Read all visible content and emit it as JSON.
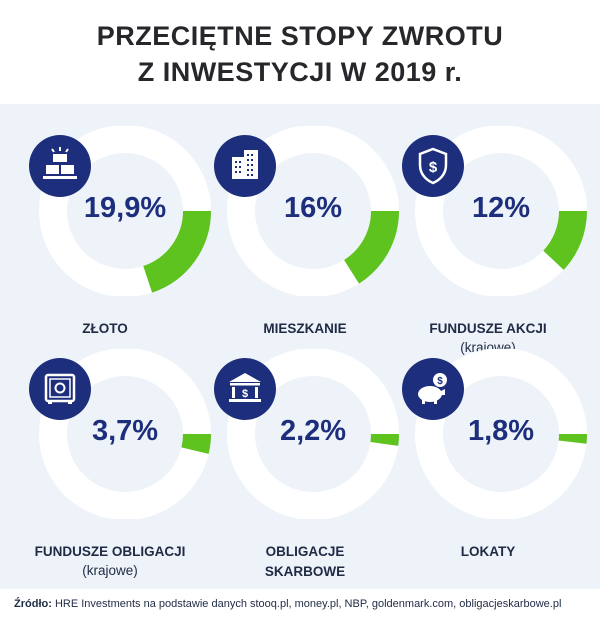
{
  "title": {
    "line1": "PRZECIĘTNE STOPY ZWROTU",
    "line2": "Z INWESTYCJI W 2019 r."
  },
  "colors": {
    "ring": "#ffffff",
    "accent": "#5ec21f",
    "value_text": "#1d2f7c",
    "badge": "#1d2f7c",
    "panel": "#eef3f9"
  },
  "chart_data": {
    "type": "pie",
    "title": "PRZECIĘTNE STOPY ZWROTU Z INWESTYCJI W 2019 r.",
    "unit": "%",
    "items": [
      {
        "label": "ZŁOTO",
        "sublabel": "",
        "value": 19.9,
        "display": "19,9%",
        "icon": "gold-bars-icon"
      },
      {
        "label": "MIESZKANIE",
        "sublabel": "",
        "value": 16,
        "display": "16%",
        "icon": "apartment-building-icon"
      },
      {
        "label": "FUNDUSZE AKCJI",
        "sublabel": "(krajowe)",
        "value": 12,
        "display": "12%",
        "icon": "dollar-shield-icon"
      },
      {
        "label": "FUNDUSZE OBLIGACJI",
        "sublabel": "(krajowe)",
        "value": 3.7,
        "display": "3,7%",
        "icon": "safe-icon"
      },
      {
        "label": "OBLIGACJE",
        "label2": "SKARBOWE",
        "sublabel": "",
        "value": 2.2,
        "display": "2,2%",
        "icon": "bank-building-icon"
      },
      {
        "label": "LOKATY",
        "sublabel": "",
        "value": 1.8,
        "display": "1,8%",
        "icon": "piggy-bank-icon"
      }
    ]
  },
  "footer": {
    "source_label": "Źródło:",
    "source_text": " HRE Investments na podstawie danych stooq.pl, money.pl, NBP, goldenmark.com, obligacjeskarbowe.pl"
  }
}
